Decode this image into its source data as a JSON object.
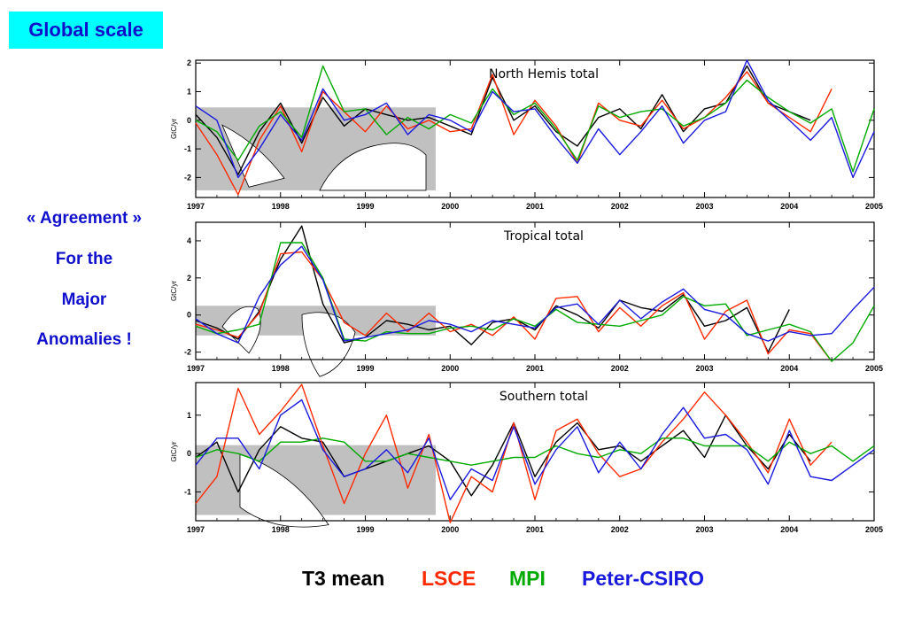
{
  "title": "Global scale",
  "side_text": [
    "« Agreement »",
    "For the",
    "Major",
    "Anomalies !"
  ],
  "legend": [
    {
      "name": "T3 mean",
      "color": "#000000"
    },
    {
      "name": "LSCE",
      "color": "#ff2a00"
    },
    {
      "name": "MPI",
      "color": "#00aa00"
    },
    {
      "name": "Peter-CSIRO",
      "color": "#1a1add"
    }
  ],
  "chart_data": [
    {
      "type": "line",
      "title": "North Hemis total",
      "ylabel": "GtC/yr",
      "xlim": [
        1997,
        2005
      ],
      "ylim": [
        -2.7,
        2.1
      ],
      "x_ticks": [
        "1997",
        "1998",
        "1999",
        "2000",
        "2001",
        "2002",
        "2003",
        "2004",
        "2005"
      ],
      "y_ticks": [
        "2",
        "1",
        "0",
        "-1",
        "-2"
      ],
      "y_tick_values": [
        2,
        1,
        0,
        -1,
        -2
      ],
      "x": [
        1997.0,
        1997.25,
        1997.5,
        1997.75,
        1998.0,
        1998.25,
        1998.5,
        1998.75,
        1999.0,
        1999.25,
        1999.5,
        1999.75,
        2000.0,
        2000.25,
        2000.5,
        2000.75,
        2001.0,
        2001.25,
        2001.5,
        2001.75,
        2002.0,
        2002.25,
        2002.5,
        2002.75,
        2003.0,
        2003.25,
        2003.5,
        2003.75,
        2004.0,
        2004.25,
        2004.5,
        2004.75,
        2005.0
      ],
      "series": [
        {
          "name": "T3 mean",
          "color": "#000000",
          "values": [
            0.2,
            -0.6,
            -1.9,
            -0.4,
            0.6,
            -0.8,
            0.8,
            -0.2,
            0.4,
            0.2,
            0.0,
            0.1,
            -0.2,
            -0.5,
            1.5,
            0.0,
            0.5,
            -0.4,
            -0.9,
            0.1,
            0.4,
            -0.3,
            0.9,
            -0.4,
            0.4,
            0.6,
            1.9,
            0.6,
            0.3,
            0.0,
            null,
            null,
            null
          ]
        },
        {
          "name": "LSCE",
          "color": "#ff2a00",
          "values": [
            -0.1,
            -1.2,
            -2.6,
            -0.7,
            0.5,
            -1.1,
            1.0,
            0.3,
            -0.4,
            0.5,
            -0.3,
            0.0,
            -0.4,
            -0.3,
            1.6,
            -0.5,
            0.7,
            -0.2,
            -1.5,
            0.6,
            0.0,
            -0.2,
            0.7,
            -0.3,
            0.1,
            0.8,
            1.7,
            0.6,
            0.1,
            -0.4,
            1.1,
            null,
            null
          ]
        },
        {
          "name": "MPI",
          "color": "#00aa00",
          "values": [
            0.0,
            -0.4,
            -1.4,
            -0.2,
            0.3,
            -0.6,
            1.9,
            0.3,
            0.4,
            -0.5,
            0.1,
            -0.3,
            0.2,
            -0.1,
            1.1,
            0.2,
            0.6,
            -0.3,
            -1.4,
            0.5,
            0.1,
            0.3,
            0.4,
            -0.2,
            0.1,
            0.6,
            1.4,
            0.8,
            0.3,
            -0.1,
            0.4,
            -1.8,
            0.4
          ]
        },
        {
          "name": "Peter-CSIRO",
          "color": "#1a1add",
          "values": [
            0.5,
            0.0,
            -2.0,
            -1.0,
            0.2,
            -0.7,
            1.1,
            0.0,
            0.2,
            0.6,
            -0.5,
            0.2,
            0.0,
            -0.4,
            1.0,
            0.3,
            0.4,
            -0.6,
            -1.5,
            -0.3,
            -1.2,
            -0.4,
            0.5,
            -0.8,
            0.0,
            0.3,
            2.1,
            0.7,
            0.0,
            -0.7,
            0.1,
            -2.0,
            -0.4
          ]
        }
      ]
    },
    {
      "type": "line",
      "title": "Tropical total",
      "ylabel": "GtC/yr",
      "xlim": [
        1997,
        2005
      ],
      "ylim": [
        -2.4,
        5.0
      ],
      "x_ticks": [
        "1997",
        "1998",
        "1999",
        "2000",
        "2001",
        "2002",
        "2003",
        "2004",
        "2005"
      ],
      "y_ticks": [
        "4",
        "2",
        "0",
        "-2"
      ],
      "y_tick_values": [
        4,
        2,
        0,
        -2
      ],
      "x": [
        1997.0,
        1997.25,
        1997.5,
        1997.75,
        1998.0,
        1998.25,
        1998.5,
        1998.75,
        1999.0,
        1999.25,
        1999.5,
        1999.75,
        2000.0,
        2000.25,
        2000.5,
        2000.75,
        2001.0,
        2001.25,
        2001.5,
        2001.75,
        2002.0,
        2002.25,
        2002.5,
        2002.75,
        2003.0,
        2003.25,
        2003.5,
        2003.75,
        2004.0,
        2004.25,
        2004.5,
        2004.75,
        2005.0
      ],
      "series": [
        {
          "name": "T3 mean",
          "color": "#000000",
          "values": [
            -0.3,
            -0.7,
            -1.3,
            0.2,
            3.0,
            4.8,
            0.6,
            -1.5,
            -1.2,
            -0.3,
            -0.5,
            -0.8,
            -0.6,
            -1.6,
            -0.4,
            -0.2,
            -0.8,
            0.5,
            0.0,
            -0.7,
            0.8,
            0.4,
            0.2,
            1.1,
            -0.6,
            -0.3,
            0.4,
            -2.0,
            0.3,
            null,
            null,
            null,
            null
          ]
        },
        {
          "name": "LSCE",
          "color": "#ff2a00",
          "values": [
            -0.5,
            -0.8,
            -1.2,
            0.1,
            3.3,
            3.4,
            1.9,
            -0.4,
            -1.1,
            0.1,
            -0.9,
            0.1,
            -0.9,
            -0.5,
            -1.1,
            -0.1,
            -1.3,
            0.9,
            1.0,
            -0.9,
            0.4,
            -0.6,
            0.5,
            1.2,
            -1.3,
            0.2,
            0.8,
            -2.1,
            -0.8,
            -1.0,
            -2.5,
            null,
            null
          ]
        },
        {
          "name": "MPI",
          "color": "#00aa00",
          "values": [
            -0.6,
            -1.0,
            -0.8,
            -0.5,
            3.9,
            3.9,
            2.0,
            -1.3,
            -1.4,
            -0.9,
            -1.0,
            -1.0,
            -0.7,
            -0.6,
            -0.8,
            -0.2,
            -0.6,
            0.3,
            -0.4,
            -0.5,
            -0.6,
            -0.3,
            0.0,
            1.0,
            0.5,
            0.6,
            -1.1,
            -0.8,
            -0.5,
            -0.9,
            -2.5,
            -1.5,
            0.5
          ]
        },
        {
          "name": "Peter-CSIRO",
          "color": "#1a1add",
          "values": [
            -0.2,
            -1.0,
            -1.5,
            1.0,
            2.7,
            3.7,
            1.9,
            -1.4,
            -1.2,
            -1.0,
            -0.8,
            -0.3,
            -0.5,
            -0.9,
            -0.3,
            -0.5,
            -0.7,
            0.4,
            0.6,
            -0.5,
            0.8,
            -0.2,
            0.7,
            1.4,
            0.3,
            0.0,
            -1.0,
            -1.4,
            -0.9,
            -1.1,
            -1.0,
            0.3,
            1.5
          ]
        }
      ]
    },
    {
      "type": "line",
      "title": "Southern total",
      "ylabel": "GtC/yr",
      "xlim": [
        1997,
        2005
      ],
      "ylim": [
        -1.75,
        1.85
      ],
      "x_ticks": [
        "1997",
        "1998",
        "1999",
        "2000",
        "2001",
        "2002",
        "2003",
        "2004",
        "2005"
      ],
      "y_ticks": [
        "1",
        "0",
        "-1"
      ],
      "y_tick_values": [
        1,
        0,
        -1
      ],
      "x": [
        1997.0,
        1997.25,
        1997.5,
        1997.75,
        1998.0,
        1998.25,
        1998.5,
        1998.75,
        1999.0,
        1999.25,
        1999.5,
        1999.75,
        2000.0,
        2000.25,
        2000.5,
        2000.75,
        2001.0,
        2001.25,
        2001.5,
        2001.75,
        2002.0,
        2002.25,
        2002.5,
        2002.75,
        2003.0,
        2003.25,
        2003.5,
        2003.75,
        2004.0,
        2004.25,
        2004.5,
        2004.75,
        2005.0
      ],
      "series": [
        {
          "name": "T3 mean",
          "color": "#000000",
          "values": [
            -0.1,
            0.3,
            -1.0,
            0.1,
            0.7,
            0.4,
            0.3,
            -0.6,
            -0.4,
            -0.2,
            0.0,
            0.2,
            -0.2,
            -1.1,
            -0.3,
            0.8,
            -0.6,
            0.3,
            0.8,
            0.1,
            0.2,
            -0.2,
            0.2,
            0.6,
            -0.1,
            1.0,
            0.2,
            -0.4,
            0.5,
            -0.2,
            null,
            null,
            null
          ]
        },
        {
          "name": "LSCE",
          "color": "#ff2a00",
          "values": [
            -1.3,
            -0.6,
            1.7,
            0.5,
            1.1,
            1.8,
            0.2,
            -1.3,
            0.0,
            1.0,
            -0.9,
            0.5,
            -1.8,
            -0.6,
            -1.0,
            0.8,
            -1.2,
            0.6,
            0.9,
            0.0,
            -0.6,
            -0.4,
            0.3,
            0.9,
            1.6,
            1.0,
            0.3,
            -0.5,
            0.9,
            -0.3,
            0.3,
            null,
            null
          ]
        },
        {
          "name": "MPI",
          "color": "#00aa00",
          "values": [
            -0.1,
            0.1,
            0.0,
            -0.2,
            0.3,
            0.3,
            0.4,
            0.3,
            -0.2,
            -0.2,
            0.0,
            -0.1,
            -0.2,
            -0.3,
            -0.2,
            -0.1,
            -0.1,
            0.2,
            0.0,
            -0.1,
            0.1,
            0.0,
            0.4,
            0.4,
            0.2,
            0.2,
            0.2,
            -0.2,
            0.3,
            0.0,
            0.2,
            -0.2,
            0.2
          ]
        },
        {
          "name": "Peter-CSIRO",
          "color": "#1a1add",
          "values": [
            -0.3,
            0.4,
            0.4,
            -0.4,
            1.0,
            1.4,
            0.1,
            -0.6,
            -0.4,
            0.1,
            -0.5,
            0.4,
            -1.2,
            -0.4,
            -0.7,
            0.7,
            -0.8,
            0.1,
            0.7,
            -0.5,
            0.3,
            -0.4,
            0.5,
            1.2,
            0.4,
            0.5,
            0.1,
            -0.8,
            0.6,
            -0.6,
            -0.7,
            -0.3,
            0.1
          ]
        }
      ]
    }
  ]
}
